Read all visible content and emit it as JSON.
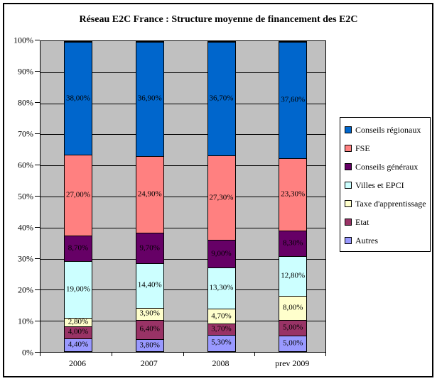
{
  "title": "Réseau E2C France : Structure moyenne de financement des E2C",
  "chart_data": {
    "type": "bar",
    "subtype": "stacked-100",
    "title": "Réseau E2C France : Structure moyenne de financement des E2C",
    "categories": [
      "2006",
      "2007",
      "2008",
      "prev 2009"
    ],
    "series": [
      {
        "name": "Autres",
        "color": "#9999FF",
        "values": [
          4.4,
          3.8,
          5.3,
          5.0
        ],
        "labels": [
          "4,40%",
          "3,80%",
          "5,30%",
          "5,00%"
        ]
      },
      {
        "name": "Etat",
        "color": "#993366",
        "values": [
          4.0,
          6.4,
          3.7,
          5.0
        ],
        "labels": [
          "4,00%",
          "6,40%",
          "3,70%",
          "5,00%"
        ]
      },
      {
        "name": "Taxe d'apprentissage",
        "color": "#FFFFCC",
        "values": [
          2.8,
          3.9,
          4.7,
          8.0
        ],
        "labels": [
          "2,80%",
          "3,90%",
          "4,70%",
          "8,00%"
        ]
      },
      {
        "name": "Villes et EPCI",
        "color": "#CCFFFF",
        "values": [
          19.0,
          14.4,
          13.3,
          12.8
        ],
        "labels": [
          "19,00%",
          "14,40%",
          "13,30%",
          "12,80%"
        ]
      },
      {
        "name": "Conseils généraux",
        "color": "#660066",
        "values": [
          8.7,
          9.7,
          9.0,
          8.3
        ],
        "labels": [
          "8,70%",
          "9,70%",
          "9,00%",
          "8,30%"
        ]
      },
      {
        "name": "FSE",
        "color": "#FF8080",
        "values": [
          27.0,
          24.9,
          27.3,
          23.3
        ],
        "labels": [
          "27,00%",
          "24,90%",
          "27,30%",
          "23,30%"
        ]
      },
      {
        "name": "Conseils régionaux",
        "color": "#0066CC",
        "values": [
          38.0,
          36.9,
          36.7,
          37.6
        ],
        "labels": [
          "38,00%",
          "36,90%",
          "36,70%",
          "37,60%"
        ]
      }
    ],
    "y_axis": {
      "min": 0,
      "max": 100,
      "tick_labels": [
        "0%",
        "10%",
        "20%",
        "30%",
        "40%",
        "50%",
        "60%",
        "70%",
        "80%",
        "90%",
        "100%"
      ]
    },
    "legend": {
      "position": "right",
      "entries": [
        {
          "label": "Conseils régionaux",
          "color": "#0066CC"
        },
        {
          "label": "FSE",
          "color": "#FF8080"
        },
        {
          "label": "Conseils généraux",
          "color": "#660066"
        },
        {
          "label": "Villes et EPCI",
          "color": "#CCFFFF"
        },
        {
          "label": "Taxe d'apprentissage",
          "color": "#FFFFCC"
        },
        {
          "label": "Etat",
          "color": "#993366"
        },
        {
          "label": "Autres",
          "color": "#9999FF"
        }
      ]
    },
    "plot": {
      "background": "#C0C0C0",
      "gridlines": true,
      "gridline_color": "#000000",
      "label_color": "#000000"
    }
  }
}
